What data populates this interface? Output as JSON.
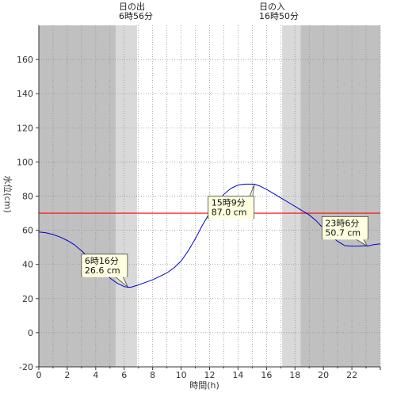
{
  "chart_data": {
    "type": "line",
    "xlabel": "時間(h)",
    "ylabel": "水位(cm)",
    "xlim": [
      0,
      24
    ],
    "ylim": [
      -20,
      180
    ],
    "x_ticks": [
      "0",
      "2",
      "4",
      "6",
      "8",
      "10",
      "12",
      "14",
      "16",
      "18",
      "20",
      "22"
    ],
    "y_ticks": [
      "-20",
      "0",
      "20",
      "40",
      "60",
      "80",
      "100",
      "120",
      "140",
      "160"
    ],
    "grid": true,
    "colors": {
      "night": "#c0c0c0",
      "twilight": "#d9d9d9",
      "day": "#ffffff",
      "line": "#0000cc",
      "reference": "#ff0000"
    },
    "sunrise": {
      "label": "日の出",
      "time": "6時56分",
      "hour": 6.93
    },
    "sunset": {
      "label": "日の入",
      "time": "16時50分",
      "hour": 16.83
    },
    "shading": {
      "night_before": 5.4,
      "twilight_morning_end": 6.9,
      "twilight_evening_start": 17.1,
      "night_after": 18.4
    },
    "reference_line": {
      "y": 70
    },
    "series": [
      {
        "x": [
          0,
          0.5,
          1,
          1.5,
          2,
          2.5,
          3,
          3.5,
          4,
          4.5,
          5,
          5.5,
          6,
          6.27,
          6.5,
          7,
          7.5,
          8,
          8.5,
          9,
          9.5,
          10,
          10.5,
          11,
          11.5,
          12,
          12.5,
          13,
          13.5,
          14,
          14.5,
          15,
          15.15,
          15.5,
          16,
          16.5,
          17,
          17.5,
          18,
          18.5,
          19,
          19.5,
          20,
          20.5,
          21,
          21.5,
          22,
          22.5,
          23,
          23.1,
          23.5,
          24
        ],
        "y": [
          59,
          58.5,
          57.5,
          56,
          54,
          51.5,
          48,
          44,
          40,
          36,
          32,
          29,
          27,
          26.6,
          26.7,
          28,
          29.5,
          31,
          33,
          35,
          38,
          42,
          48,
          55,
          63,
          70,
          76,
          81,
          84.5,
          86.5,
          87,
          87,
          87,
          86,
          84,
          81.5,
          79,
          76.5,
          74,
          71.5,
          69,
          65.5,
          61,
          57,
          53.5,
          51,
          50.7,
          50.7,
          51,
          50.7,
          51.5,
          52
        ]
      }
    ],
    "annotations": [
      {
        "time": "6時16分",
        "value": "26.6 cm",
        "x": 6.27,
        "y": 26.6,
        "box_x": 3.0,
        "box_y": 46
      },
      {
        "time": "15時9分",
        "value": "87.0 cm",
        "x": 15.15,
        "y": 87,
        "box_x": 11.9,
        "box_y": 80
      },
      {
        "time": "23時6分",
        "value": "50.7 cm",
        "x": 23.1,
        "y": 50.7,
        "box_x": 19.9,
        "box_y": 68
      }
    ]
  }
}
